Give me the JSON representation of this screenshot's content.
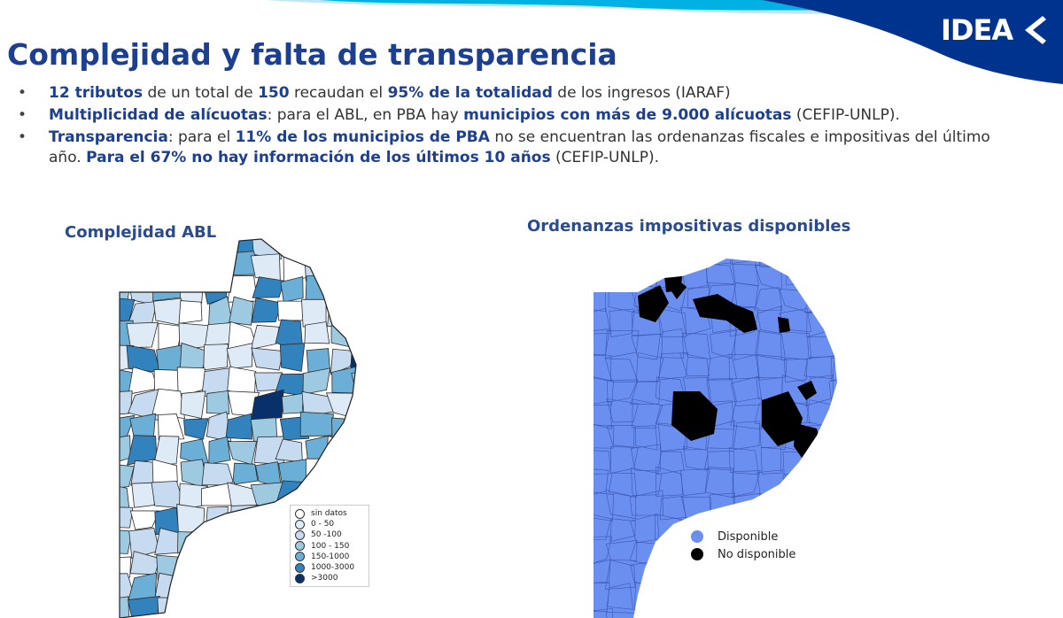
{
  "header": {
    "logo_text": "IDEA",
    "title": "Complejidad y falta de transparencia",
    "colors": {
      "brand_dark": "#00338d",
      "brand_light": "#00b2e3",
      "title": "#1c3f8f"
    }
  },
  "bullets": [
    {
      "parts": [
        {
          "b": true,
          "t": "12 tributos"
        },
        {
          "b": false,
          "t": " de un total de "
        },
        {
          "b": true,
          "t": "150"
        },
        {
          "b": false,
          "t": " recaudan el "
        },
        {
          "b": true,
          "t": "95% de la totalidad"
        },
        {
          "b": false,
          "t": " de los ingresos (IARAF)"
        }
      ]
    },
    {
      "parts": [
        {
          "b": true,
          "t": "Multiplicidad de alícuotas"
        },
        {
          "b": false,
          "t": ": para el ABL, en PBA hay "
        },
        {
          "b": true,
          "t": "municipios con más de 9.000 alícuotas"
        },
        {
          "b": false,
          "t": " (CEFIP-UNLP)."
        }
      ]
    },
    {
      "parts": [
        {
          "b": true,
          "t": "Transparencia"
        },
        {
          "b": false,
          "t": ": para el "
        },
        {
          "b": true,
          "t": "11% de los municipios de PBA"
        },
        {
          "b": false,
          "t": " no se encuentran las ordenanzas fiscales e impositivas del último año. "
        },
        {
          "b": true,
          "t": "Para el 67% no hay información de los últimos 10 años"
        },
        {
          "b": false,
          "t": " (CEFIP-UNLP)."
        }
      ]
    }
  ],
  "maps": {
    "left": {
      "title": "Complejidad ABL",
      "legend": [
        {
          "label": "sin datos",
          "color": "#ffffff"
        },
        {
          "label": "0 - 50",
          "color": "#deebf7"
        },
        {
          "label": "50 -100",
          "color": "#c6dbef"
        },
        {
          "label": "100 - 150",
          "color": "#9ecae1"
        },
        {
          "label": "150-1000",
          "color": "#6baed6"
        },
        {
          "label": "1000-3000",
          "color": "#3182bd"
        },
        {
          "label": ">3000",
          "color": "#08306b"
        }
      ]
    },
    "right": {
      "title": "Ordenanzas impositivas disponibles",
      "legend": [
        {
          "label": "Disponible",
          "color": "#6b8ff0"
        },
        {
          "label": "No disponible",
          "color": "#000000"
        }
      ]
    }
  }
}
